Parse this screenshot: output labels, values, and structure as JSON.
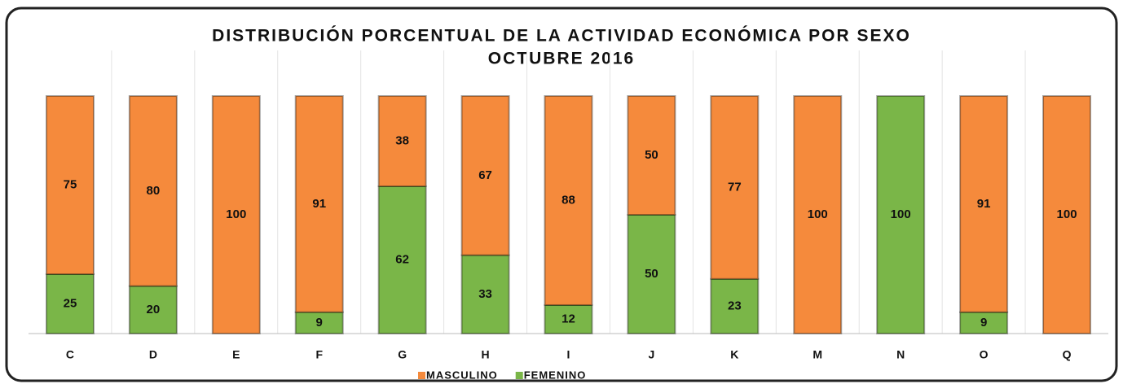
{
  "chart_data": {
    "type": "stacked_bar",
    "title": "DISTRIBUCIÓN PORCENTUAL DE LA ACTIVIDAD ECONÓMICA POR SEXO",
    "subtitle": "OCTUBRE 2016",
    "categories": [
      "C",
      "D",
      "E",
      "F",
      "G",
      "H",
      "I",
      "J",
      "K",
      "M",
      "N",
      "O",
      "Q"
    ],
    "series": [
      {
        "name": "MASCULINO",
        "color": "#f58a3c",
        "values": [
          75,
          80,
          100,
          91,
          38,
          67,
          88,
          50,
          77,
          100,
          0,
          91,
          100
        ]
      },
      {
        "name": "FEMENINO",
        "color": "#7ab648",
        "values": [
          25,
          20,
          0,
          9,
          62,
          33,
          12,
          50,
          23,
          0,
          100,
          9,
          0
        ]
      }
    ],
    "ylim": [
      0,
      100
    ],
    "legend": "bottom"
  }
}
